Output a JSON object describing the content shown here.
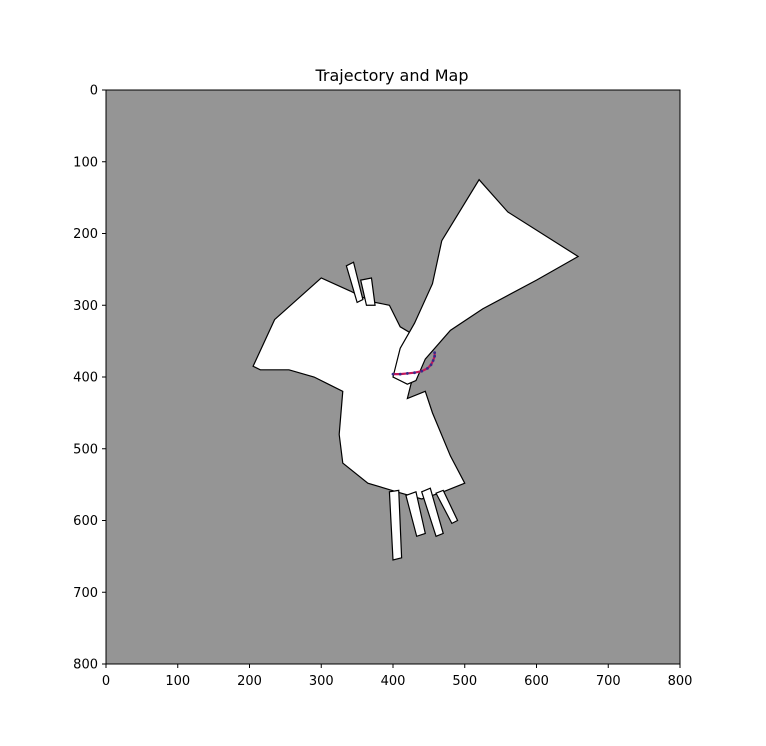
{
  "chart_data": {
    "type": "heatmap",
    "title": "Trajectory and Map",
    "xlabel": "",
    "ylabel": "",
    "xlim": [
      0,
      800
    ],
    "ylim": [
      800,
      0
    ],
    "x_ticks": [
      "0",
      "100",
      "200",
      "300",
      "400",
      "500",
      "600",
      "700",
      "800"
    ],
    "y_ticks": [
      "0",
      "100",
      "200",
      "300",
      "400",
      "500",
      "600",
      "700",
      "800"
    ],
    "y_inverted": true,
    "grid": false,
    "colors": {
      "unknown": "#959595",
      "free": "#ffffff",
      "occupied": "#000000",
      "trajectory": "#c2185b",
      "trajectory_markers": "#3a2a8a"
    },
    "map_regions": [
      {
        "kind": "free",
        "polygon": [
          [
            205,
            385
          ],
          [
            235,
            320
          ],
          [
            300,
            262
          ],
          [
            340,
            280
          ],
          [
            370,
            295
          ],
          [
            395,
            300
          ],
          [
            410,
            330
          ],
          [
            435,
            345
          ],
          [
            440,
            370
          ],
          [
            425,
            410
          ],
          [
            420,
            430
          ],
          [
            445,
            420
          ],
          [
            455,
            450
          ],
          [
            480,
            510
          ],
          [
            500,
            548
          ],
          [
            470,
            560
          ],
          [
            440,
            570
          ],
          [
            405,
            560
          ],
          [
            365,
            548
          ],
          [
            330,
            520
          ],
          [
            325,
            480
          ],
          [
            330,
            420
          ],
          [
            310,
            410
          ],
          [
            290,
            400
          ],
          [
            255,
            390
          ],
          [
            215,
            390
          ]
        ]
      },
      {
        "kind": "free",
        "polygon": [
          [
            410,
            360
          ],
          [
            430,
            325
          ],
          [
            455,
            270
          ],
          [
            468,
            210
          ],
          [
            520,
            125
          ],
          [
            560,
            170
          ],
          [
            658,
            232
          ],
          [
            600,
            265
          ],
          [
            525,
            305
          ],
          [
            480,
            335
          ],
          [
            445,
            375
          ],
          [
            432,
            405
          ],
          [
            420,
            410
          ],
          [
            400,
            400
          ]
        ]
      },
      {
        "kind": "free",
        "polygon": [
          [
            335,
            245
          ],
          [
            345,
            240
          ],
          [
            358,
            292
          ],
          [
            350,
            296
          ]
        ]
      },
      {
        "kind": "free",
        "polygon": [
          [
            355,
            265
          ],
          [
            370,
            262
          ],
          [
            375,
            300
          ],
          [
            363,
            300
          ]
        ]
      },
      {
        "kind": "free",
        "polygon": [
          [
            395,
            560
          ],
          [
            408,
            558
          ],
          [
            412,
            652
          ],
          [
            400,
            655
          ]
        ]
      },
      {
        "kind": "free",
        "polygon": [
          [
            418,
            565
          ],
          [
            432,
            560
          ],
          [
            445,
            618
          ],
          [
            433,
            622
          ]
        ]
      },
      {
        "kind": "free",
        "polygon": [
          [
            440,
            560
          ],
          [
            452,
            555
          ],
          [
            470,
            618
          ],
          [
            460,
            622
          ]
        ]
      },
      {
        "kind": "free",
        "polygon": [
          [
            460,
            562
          ],
          [
            470,
            558
          ],
          [
            490,
            600
          ],
          [
            482,
            604
          ]
        ]
      }
    ],
    "trajectory": {
      "x": [
        400,
        410,
        420,
        430,
        440,
        448,
        453,
        456,
        458,
        458
      ],
      "y": [
        396,
        396,
        395,
        394,
        392,
        388,
        383,
        377,
        371,
        366
      ]
    }
  }
}
